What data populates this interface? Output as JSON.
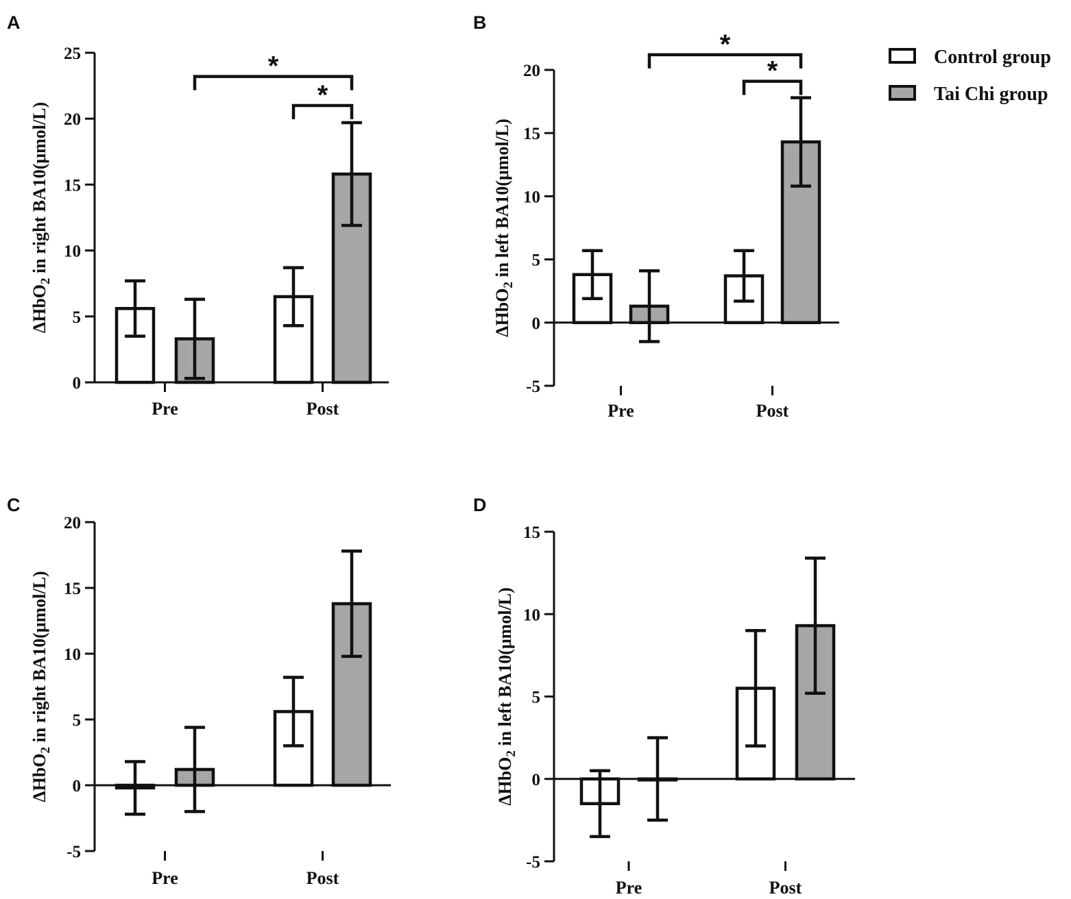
{
  "colors": {
    "control_fill": "#ffffff",
    "taichi_fill": "#a6a6a6",
    "stroke": "#111111"
  },
  "legend": {
    "control": "Control group",
    "taichi": "Tai Chi group"
  },
  "significance_marker": "*",
  "chart_data": [
    {
      "panel": "A",
      "type": "bar",
      "categories": [
        "Pre",
        "Post"
      ],
      "ylabel_prefix": "ΔHbO",
      "ylabel_sub": "2",
      "ylabel_suffix": " in right BA10(μmol/L)",
      "ylim": [
        0,
        25
      ],
      "yticks": [
        0,
        5,
        10,
        15,
        20,
        25
      ],
      "ytick_labels": [
        "0",
        "5",
        "10",
        "15",
        "20",
        "25"
      ],
      "series": [
        {
          "name": "Control group",
          "values": [
            5.6,
            6.5
          ],
          "errors": [
            2.1,
            2.2
          ]
        },
        {
          "name": "Tai Chi group",
          "values": [
            3.3,
            15.8
          ],
          "errors": [
            3.0,
            3.9
          ]
        }
      ],
      "significance": [
        {
          "from": "Tai Chi group|Pre",
          "to": "Tai Chi group|Post",
          "label": "*",
          "y": 23.2
        },
        {
          "from": "Control group|Post",
          "to": "Tai Chi group|Post",
          "label": "*",
          "y": 21.0
        }
      ]
    },
    {
      "panel": "B",
      "type": "bar",
      "categories": [
        "Pre",
        "Post"
      ],
      "ylabel_prefix": "ΔHbO",
      "ylabel_sub": "2",
      "ylabel_suffix": " in left BA10(μmol/L)",
      "ylim": [
        -5,
        20
      ],
      "yticks": [
        -5,
        0,
        5,
        10,
        15,
        20
      ],
      "ytick_labels": [
        "-5",
        "0",
        "5",
        "10",
        "15",
        "20"
      ],
      "series": [
        {
          "name": "Control group",
          "values": [
            3.8,
            3.7
          ],
          "errors": [
            1.9,
            2.0
          ]
        },
        {
          "name": "Tai Chi group",
          "values": [
            1.3,
            14.3
          ],
          "errors": [
            2.8,
            3.5
          ]
        }
      ],
      "significance": [
        {
          "from": "Tai Chi group|Pre",
          "to": "Tai Chi group|Post",
          "label": "*",
          "y": 21.2
        },
        {
          "from": "Control group|Post",
          "to": "Tai Chi group|Post",
          "label": "*",
          "y": 19.1
        }
      ]
    },
    {
      "panel": "C",
      "type": "bar",
      "categories": [
        "Pre",
        "Post"
      ],
      "ylabel_prefix": "ΔHbO",
      "ylabel_sub": "2",
      "ylabel_suffix": " in right BA10(μmol/L)",
      "ylim": [
        -5,
        20
      ],
      "yticks": [
        -5,
        0,
        5,
        10,
        15,
        20
      ],
      "ytick_labels": [
        "-5",
        "0",
        "5",
        "10",
        "15",
        "20"
      ],
      "series": [
        {
          "name": "Control group",
          "values": [
            -0.2,
            5.6
          ],
          "errors": [
            2.0,
            2.6
          ]
        },
        {
          "name": "Tai Chi group",
          "values": [
            1.2,
            13.8
          ],
          "errors": [
            3.2,
            4.0
          ]
        }
      ],
      "significance": []
    },
    {
      "panel": "D",
      "type": "bar",
      "categories": [
        "Pre",
        "Post"
      ],
      "ylabel_prefix": "ΔHbO",
      "ylabel_sub": "2",
      "ylabel_suffix": " in left BA10(μmol/L)",
      "ylim": [
        -5,
        15
      ],
      "yticks": [
        -5,
        0,
        5,
        10,
        15
      ],
      "ytick_labels": [
        "-5",
        "0",
        "5",
        "10",
        "15"
      ],
      "series": [
        {
          "name": "Control group",
          "values": [
            -1.5,
            5.5
          ],
          "errors": [
            2.0,
            3.5
          ]
        },
        {
          "name": "Tai Chi group",
          "values": [
            0.0,
            9.3
          ],
          "errors": [
            2.5,
            4.1
          ]
        }
      ],
      "significance": []
    }
  ]
}
